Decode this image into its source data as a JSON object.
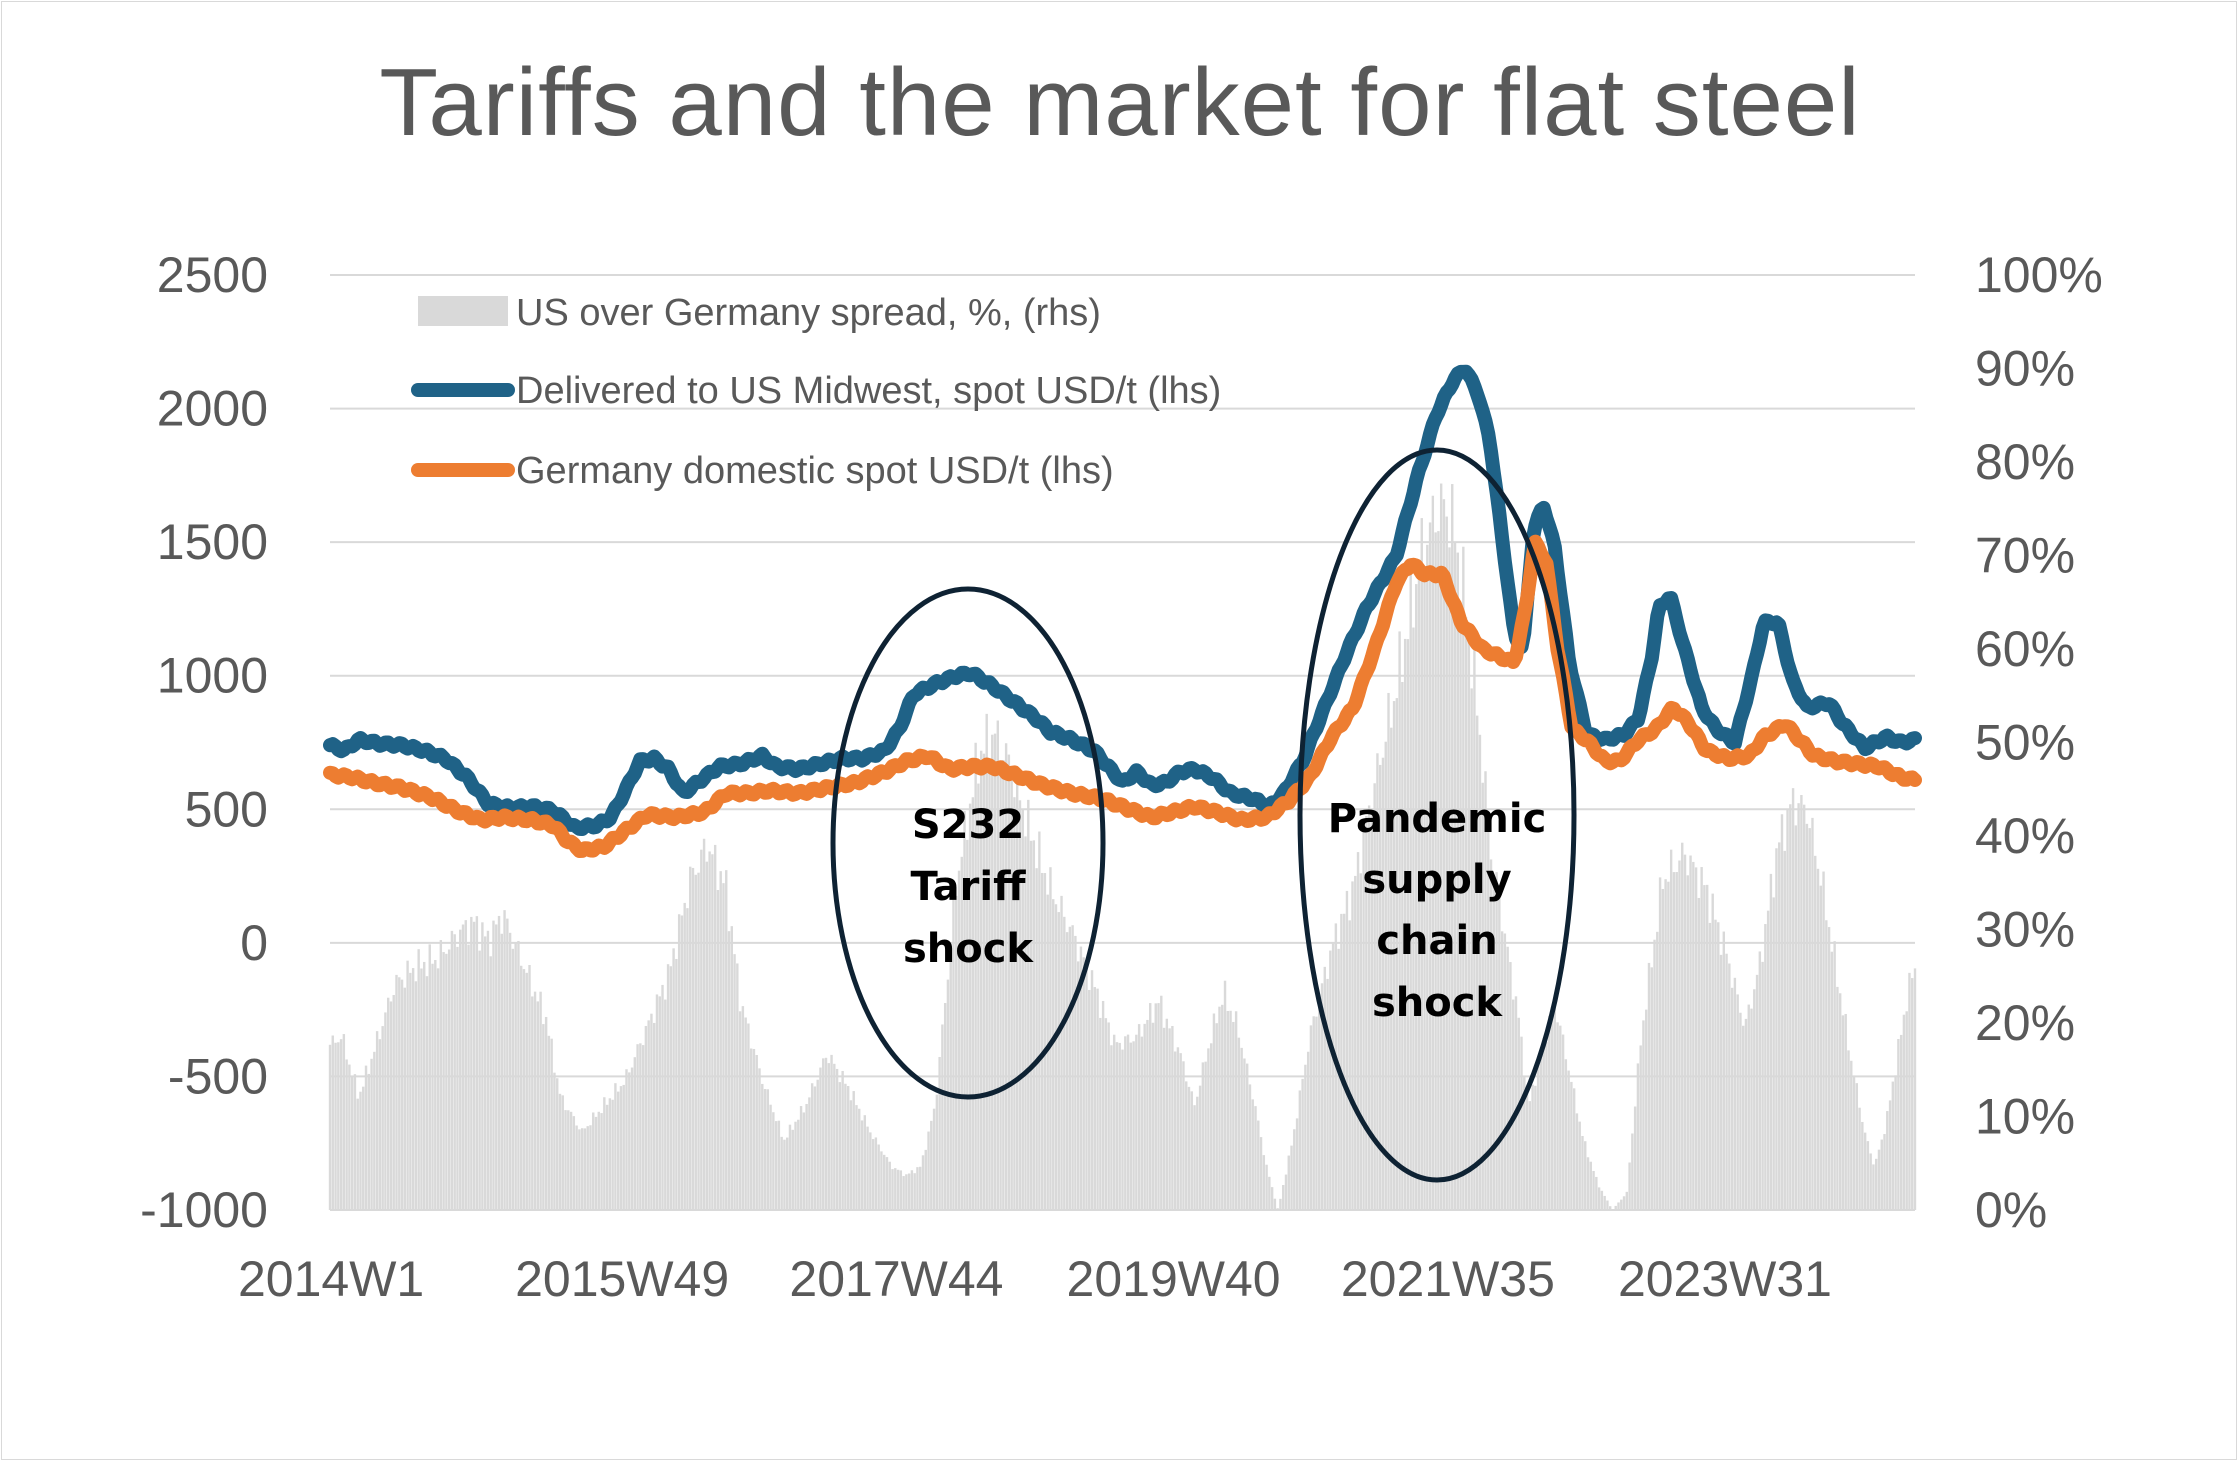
{
  "chart_data": {
    "type": "bar+line",
    "title": "Tariffs and the market for flat steel",
    "y_left": {
      "min": -1000,
      "max": 2500,
      "ticks": [
        2500,
        2000,
        1500,
        1000,
        500,
        0,
        -500,
        -1000
      ]
    },
    "y_right": {
      "min": 0,
      "max": 1,
      "ticks": [
        "100%",
        "90%",
        "80%",
        "70%",
        "60%",
        "50%",
        "40%",
        "30%",
        "20%",
        "10%",
        "0%"
      ]
    },
    "x": {
      "start_year": 2014,
      "start_week": 1,
      "end_year": 2025,
      "end_week": 1,
      "tick_labels": [
        "2014W1",
        "2015W49",
        "2017W44",
        "2019W40",
        "2021W35",
        "2023W31"
      ]
    },
    "grid": true,
    "legend_position": "top-left",
    "series": [
      {
        "name": "US over Germany spread, %, (rhs)",
        "kind": "bar",
        "axis": "right",
        "color": "#d9d9d9",
        "keypoints": [
          [
            2014.0,
            0.19
          ],
          [
            2014.08,
            0.2
          ],
          [
            2014.2,
            0.13
          ],
          [
            2014.3,
            0.18
          ],
          [
            2014.45,
            0.26
          ],
          [
            2014.6,
            0.28
          ],
          [
            2014.75,
            0.29
          ],
          [
            2014.9,
            0.32
          ],
          [
            2015.0,
            0.33
          ],
          [
            2015.1,
            0.31
          ],
          [
            2015.2,
            0.34
          ],
          [
            2015.3,
            0.3
          ],
          [
            2015.5,
            0.22
          ],
          [
            2015.6,
            0.13
          ],
          [
            2015.75,
            0.09
          ],
          [
            2015.9,
            0.12
          ],
          [
            2016.05,
            0.15
          ],
          [
            2016.2,
            0.21
          ],
          [
            2016.35,
            0.27
          ],
          [
            2016.5,
            0.38
          ],
          [
            2016.62,
            0.42
          ],
          [
            2016.75,
            0.37
          ],
          [
            2016.85,
            0.24
          ],
          [
            2017.0,
            0.15
          ],
          [
            2017.15,
            0.08
          ],
          [
            2017.3,
            0.12
          ],
          [
            2017.45,
            0.18
          ],
          [
            2017.6,
            0.14
          ],
          [
            2017.75,
            0.09
          ],
          [
            2017.9,
            0.05
          ],
          [
            2018.0,
            0.04
          ],
          [
            2018.1,
            0.05
          ],
          [
            2018.2,
            0.12
          ],
          [
            2018.35,
            0.38
          ],
          [
            2018.5,
            0.52
          ],
          [
            2018.6,
            0.55
          ],
          [
            2018.7,
            0.52
          ],
          [
            2018.85,
            0.44
          ],
          [
            2019.0,
            0.37
          ],
          [
            2019.15,
            0.32
          ],
          [
            2019.3,
            0.26
          ],
          [
            2019.45,
            0.19
          ],
          [
            2019.6,
            0.2
          ],
          [
            2019.75,
            0.24
          ],
          [
            2019.9,
            0.18
          ],
          [
            2020.0,
            0.12
          ],
          [
            2020.1,
            0.19
          ],
          [
            2020.2,
            0.25
          ],
          [
            2020.3,
            0.21
          ],
          [
            2020.42,
            0.12
          ],
          [
            2020.5,
            0.05
          ],
          [
            2020.58,
            0.0
          ],
          [
            2020.68,
            0.08
          ],
          [
            2020.8,
            0.2
          ],
          [
            2020.95,
            0.3
          ],
          [
            2021.1,
            0.37
          ],
          [
            2021.25,
            0.49
          ],
          [
            2021.4,
            0.6
          ],
          [
            2021.5,
            0.69
          ],
          [
            2021.6,
            0.77
          ],
          [
            2021.7,
            0.81
          ],
          [
            2021.78,
            0.8
          ],
          [
            2021.88,
            0.7
          ],
          [
            2021.98,
            0.55
          ],
          [
            2022.05,
            0.42
          ],
          [
            2022.15,
            0.32
          ],
          [
            2022.25,
            0.22
          ],
          [
            2022.32,
            0.12
          ],
          [
            2022.4,
            0.18
          ],
          [
            2022.5,
            0.24
          ],
          [
            2022.6,
            0.16
          ],
          [
            2022.7,
            0.08
          ],
          [
            2022.8,
            0.03
          ],
          [
            2022.9,
            0.0
          ],
          [
            2023.0,
            0.02
          ],
          [
            2023.1,
            0.2
          ],
          [
            2023.25,
            0.38
          ],
          [
            2023.4,
            0.41
          ],
          [
            2023.55,
            0.37
          ],
          [
            2023.7,
            0.29
          ],
          [
            2023.82,
            0.21
          ],
          [
            2023.92,
            0.28
          ],
          [
            2024.05,
            0.42
          ],
          [
            2024.15,
            0.47
          ],
          [
            2024.25,
            0.46
          ],
          [
            2024.35,
            0.38
          ],
          [
            2024.45,
            0.28
          ],
          [
            2024.55,
            0.18
          ],
          [
            2024.65,
            0.09
          ],
          [
            2024.72,
            0.05
          ],
          [
            2024.8,
            0.1
          ],
          [
            2024.88,
            0.18
          ],
          [
            2024.95,
            0.25
          ],
          [
            2025.0,
            0.28
          ]
        ]
      },
      {
        "name": "Delivered to US Midwest, spot USD/t (lhs)",
        "kind": "line",
        "axis": "left",
        "color": "#1f6287",
        "keypoints": [
          [
            2014.0,
            740
          ],
          [
            2014.1,
            720
          ],
          [
            2014.2,
            760
          ],
          [
            2014.35,
            745
          ],
          [
            2014.5,
            740
          ],
          [
            2014.65,
            720
          ],
          [
            2014.8,
            690
          ],
          [
            2014.95,
            620
          ],
          [
            2015.1,
            520
          ],
          [
            2015.25,
            505
          ],
          [
            2015.4,
            510
          ],
          [
            2015.55,
            495
          ],
          [
            2015.7,
            430
          ],
          [
            2015.85,
            440
          ],
          [
            2015.95,
            470
          ],
          [
            2016.05,
            570
          ],
          [
            2016.15,
            680
          ],
          [
            2016.25,
            690
          ],
          [
            2016.35,
            650
          ],
          [
            2016.45,
            560
          ],
          [
            2016.55,
            600
          ],
          [
            2016.7,
            660
          ],
          [
            2016.85,
            670
          ],
          [
            2017.0,
            700
          ],
          [
            2017.1,
            660
          ],
          [
            2017.25,
            650
          ],
          [
            2017.4,
            670
          ],
          [
            2017.55,
            690
          ],
          [
            2017.7,
            690
          ],
          [
            2017.85,
            720
          ],
          [
            2017.95,
            800
          ],
          [
            2018.05,
            930
          ],
          [
            2018.2,
            970
          ],
          [
            2018.35,
            1000
          ],
          [
            2018.45,
            1010
          ],
          [
            2018.6,
            960
          ],
          [
            2018.75,
            900
          ],
          [
            2018.9,
            840
          ],
          [
            2019.0,
            790
          ],
          [
            2019.15,
            760
          ],
          [
            2019.3,
            720
          ],
          [
            2019.4,
            660
          ],
          [
            2019.5,
            600
          ],
          [
            2019.6,
            640
          ],
          [
            2019.7,
            590
          ],
          [
            2019.8,
            600
          ],
          [
            2019.9,
            640
          ],
          [
            2020.0,
            650
          ],
          [
            2020.12,
            620
          ],
          [
            2020.25,
            560
          ],
          [
            2020.4,
            540
          ],
          [
            2020.52,
            510
          ],
          [
            2020.62,
            560
          ],
          [
            2020.75,
            680
          ],
          [
            2020.9,
            880
          ],
          [
            2021.05,
            1080
          ],
          [
            2021.2,
            1260
          ],
          [
            2021.4,
            1450
          ],
          [
            2021.55,
            1750
          ],
          [
            2021.68,
            1980
          ],
          [
            2021.8,
            2110
          ],
          [
            2021.88,
            2150
          ],
          [
            2021.97,
            2050
          ],
          [
            2022.05,
            1880
          ],
          [
            2022.15,
            1450
          ],
          [
            2022.22,
            1150
          ],
          [
            2022.28,
            1100
          ],
          [
            2022.35,
            1540
          ],
          [
            2022.42,
            1640
          ],
          [
            2022.5,
            1480
          ],
          [
            2022.6,
            1050
          ],
          [
            2022.72,
            780
          ],
          [
            2022.85,
            760
          ],
          [
            2022.98,
            780
          ],
          [
            2023.08,
            840
          ],
          [
            2023.17,
            1060
          ],
          [
            2023.22,
            1250
          ],
          [
            2023.3,
            1300
          ],
          [
            2023.4,
            1100
          ],
          [
            2023.52,
            880
          ],
          [
            2023.62,
            800
          ],
          [
            2023.75,
            750
          ],
          [
            2023.87,
            1000
          ],
          [
            2023.95,
            1200
          ],
          [
            2024.05,
            1200
          ],
          [
            2024.15,
            980
          ],
          [
            2024.25,
            880
          ],
          [
            2024.4,
            900
          ],
          [
            2024.5,
            820
          ],
          [
            2024.65,
            730
          ],
          [
            2024.8,
            770
          ],
          [
            2024.9,
            750
          ],
          [
            2025.0,
            760
          ]
        ]
      },
      {
        "name": "Germany domestic spot USD/t (lhs)",
        "kind": "line",
        "axis": "left",
        "color": "#ed7d31",
        "keypoints": [
          [
            2014.0,
            630
          ],
          [
            2014.15,
            620
          ],
          [
            2014.3,
            600
          ],
          [
            2014.5,
            580
          ],
          [
            2014.7,
            545
          ],
          [
            2014.9,
            490
          ],
          [
            2015.05,
            460
          ],
          [
            2015.2,
            470
          ],
          [
            2015.4,
            460
          ],
          [
            2015.55,
            440
          ],
          [
            2015.65,
            380
          ],
          [
            2015.75,
            345
          ],
          [
            2015.9,
            360
          ],
          [
            2016.05,
            420
          ],
          [
            2016.2,
            480
          ],
          [
            2016.4,
            470
          ],
          [
            2016.6,
            490
          ],
          [
            2016.75,
            560
          ],
          [
            2016.9,
            560
          ],
          [
            2017.05,
            570
          ],
          [
            2017.25,
            560
          ],
          [
            2017.45,
            580
          ],
          [
            2017.65,
            600
          ],
          [
            2017.85,
            640
          ],
          [
            2018.0,
            680
          ],
          [
            2018.15,
            700
          ],
          [
            2018.3,
            650
          ],
          [
            2018.45,
            660
          ],
          [
            2018.6,
            660
          ],
          [
            2018.75,
            630
          ],
          [
            2018.95,
            590
          ],
          [
            2019.15,
            560
          ],
          [
            2019.35,
            540
          ],
          [
            2019.55,
            500
          ],
          [
            2019.7,
            470
          ],
          [
            2019.85,
            490
          ],
          [
            2020.0,
            510
          ],
          [
            2020.15,
            490
          ],
          [
            2020.32,
            460
          ],
          [
            2020.5,
            470
          ],
          [
            2020.65,
            530
          ],
          [
            2020.8,
            620
          ],
          [
            2020.95,
            770
          ],
          [
            2021.1,
            880
          ],
          [
            2021.25,
            1100
          ],
          [
            2021.4,
            1350
          ],
          [
            2021.5,
            1420
          ],
          [
            2021.6,
            1380
          ],
          [
            2021.72,
            1380
          ],
          [
            2021.85,
            1200
          ],
          [
            2022.0,
            1100
          ],
          [
            2022.12,
            1070
          ],
          [
            2022.22,
            1050
          ],
          [
            2022.3,
            1260
          ],
          [
            2022.36,
            1500
          ],
          [
            2022.44,
            1430
          ],
          [
            2022.52,
            1100
          ],
          [
            2022.62,
            800
          ],
          [
            2022.72,
            760
          ],
          [
            2022.85,
            680
          ],
          [
            2022.95,
            680
          ],
          [
            2023.08,
            760
          ],
          [
            2023.2,
            800
          ],
          [
            2023.32,
            880
          ],
          [
            2023.42,
            830
          ],
          [
            2023.55,
            720
          ],
          [
            2023.7,
            690
          ],
          [
            2023.85,
            700
          ],
          [
            2023.95,
            770
          ],
          [
            2024.1,
            820
          ],
          [
            2024.2,
            760
          ],
          [
            2024.3,
            700
          ],
          [
            2024.45,
            680
          ],
          [
            2024.6,
            670
          ],
          [
            2024.75,
            660
          ],
          [
            2024.9,
            620
          ],
          [
            2025.0,
            610
          ]
        ]
      }
    ],
    "annotations": [
      {
        "lines": [
          "S232",
          "Tariff",
          "shock"
        ]
      },
      {
        "lines": [
          "Pandemic",
          "supply",
          "chain",
          "shock"
        ]
      }
    ]
  }
}
